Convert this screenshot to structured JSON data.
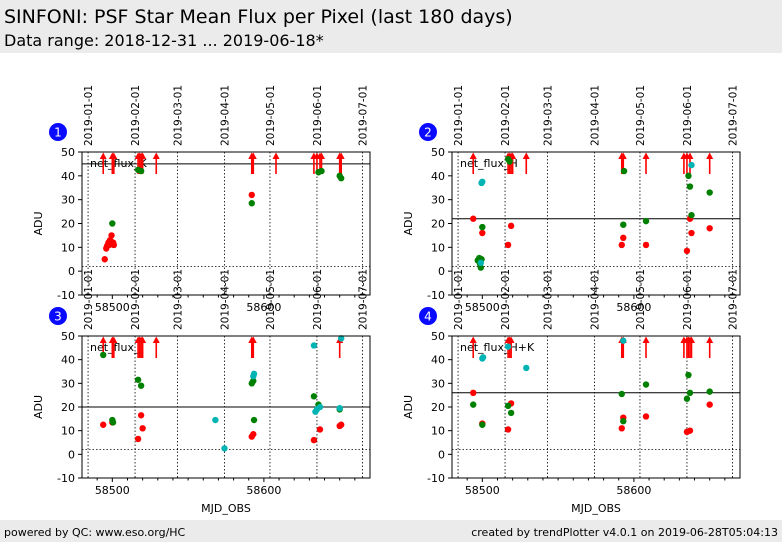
{
  "header": {
    "title": "SINFONI: PSF Star Mean Flux per Pixel (last 180 days)",
    "subtitle": "Data range: 2018-12-31 ... 2019-06-18*"
  },
  "footer": {
    "left": "powered by QC: www.eso.org/HC",
    "right": "created by trendPlotter v4.0.1 on 2019-06-28T05:04:13"
  },
  "colors": {
    "red": "#ff0000",
    "green": "#008000",
    "cyan": "#00b4b4",
    "badge": "#0a0aff",
    "header_bg": "#ebebeb"
  },
  "chart_data": [
    {
      "type": "scatter",
      "panel": "1",
      "label": "net_flux_K",
      "xlabel": "",
      "ylabel": "ADU",
      "xlim": [
        58480,
        58670
      ],
      "ylim": [
        -10,
        50
      ],
      "yticks": [
        -10,
        0,
        10,
        20,
        30,
        40,
        50
      ],
      "xticks": [
        58500,
        58600
      ],
      "reference_line": 45,
      "zero_line": 2,
      "grid": "dotted vertical at month starts",
      "date_ticks": [
        {
          "mjd": 58484,
          "label": "2019-01-01"
        },
        {
          "mjd": 58515,
          "label": "2019-02-01"
        },
        {
          "mjd": 58543,
          "label": "2019-03-01"
        },
        {
          "mjd": 58574,
          "label": "2019-04-01"
        },
        {
          "mjd": 58604,
          "label": "2019-05-01"
        },
        {
          "mjd": 58635,
          "label": "2019-06-01"
        },
        {
          "mjd": 58665,
          "label": "2019-07-01"
        }
      ],
      "series": [
        {
          "color": "red",
          "points": [
            [
              58495,
              5
            ],
            [
              58496,
              9.5
            ],
            [
              58496.5,
              10.5
            ],
            [
              58497,
              11
            ],
            [
              58497.5,
              12
            ],
            [
              58498,
              11
            ],
            [
              58498.5,
              13
            ],
            [
              58499,
              12.5
            ],
            [
              58499.5,
              15
            ],
            [
              58500,
              11.5
            ],
            [
              58500.5,
              12
            ],
            [
              58501,
              11
            ],
            [
              58592,
              32
            ]
          ]
        },
        {
          "color": "green",
          "points": [
            [
              58500,
              20
            ],
            [
              58517,
              42.5
            ],
            [
              58519,
              42
            ],
            [
              58592,
              28.5
            ],
            [
              58636,
              41.5
            ],
            [
              58638,
              42
            ],
            [
              58650,
              40
            ],
            [
              58651,
              39
            ]
          ]
        }
      ],
      "outliers_above": [
        58494,
        58500,
        58501,
        58517,
        58518,
        58519,
        58520,
        58529,
        58592,
        58593,
        58608,
        58633,
        58635,
        58637,
        58638,
        58650,
        58651
      ]
    },
    {
      "type": "scatter",
      "panel": "2",
      "label": "net_flux_H",
      "xlabel": "",
      "ylabel": "ADU",
      "xlim": [
        58480,
        58670
      ],
      "ylim": [
        -10,
        50
      ],
      "yticks": [
        -10,
        0,
        10,
        20,
        30,
        40,
        50
      ],
      "xticks": [
        58500,
        58600
      ],
      "reference_line": 22,
      "zero_line": 2,
      "grid": "dotted vertical at month starts",
      "date_ticks": [
        {
          "mjd": 58484,
          "label": "2019-01-01"
        },
        {
          "mjd": 58515,
          "label": "2019-02-01"
        },
        {
          "mjd": 58543,
          "label": "2019-03-01"
        },
        {
          "mjd": 58574,
          "label": "2019-04-01"
        },
        {
          "mjd": 58604,
          "label": "2019-05-01"
        },
        {
          "mjd": 58635,
          "label": "2019-06-01"
        },
        {
          "mjd": 58665,
          "label": "2019-07-01"
        }
      ],
      "series": [
        {
          "color": "red",
          "points": [
            [
              58494,
              22
            ],
            [
              58500,
              16
            ],
            [
              58517,
              11
            ],
            [
              58519,
              19
            ],
            [
              58592,
              11
            ],
            [
              58593,
              14
            ],
            [
              58608,
              11
            ],
            [
              58635,
              8.5
            ],
            [
              58637,
              22
            ],
            [
              58638,
              16
            ],
            [
              58650,
              18
            ]
          ]
        },
        {
          "color": "green",
          "points": [
            [
              58497,
              4.5
            ],
            [
              58498,
              5.5
            ],
            [
              58498.5,
              3
            ],
            [
              58499,
              1.5
            ],
            [
              58499.5,
              5
            ],
            [
              58500,
              18.5
            ],
            [
              58517,
              47
            ],
            [
              58518,
              46
            ],
            [
              58593,
              19.5
            ],
            [
              58593.5,
              42
            ],
            [
              58608,
              21
            ],
            [
              58636,
              40
            ],
            [
              58637,
              35.5
            ],
            [
              58638,
              23.5
            ],
            [
              58650,
              33
            ]
          ]
        },
        {
          "color": "cyan",
          "points": [
            [
              58499.5,
              37
            ],
            [
              58500,
              37.5
            ],
            [
              58499,
              3.5
            ],
            [
              58638,
              44.5
            ]
          ]
        }
      ],
      "outliers_above": [
        58494,
        58517,
        58518,
        58519,
        58520,
        58529,
        58592,
        58593,
        58608,
        58633,
        58635,
        58637,
        58650
      ]
    },
    {
      "type": "scatter",
      "panel": "3",
      "label": "net_flux_J",
      "xlabel": "MJD_OBS",
      "ylabel": "ADU",
      "xlim": [
        58480,
        58670
      ],
      "ylim": [
        -10,
        50
      ],
      "yticks": [
        -10,
        0,
        10,
        20,
        30,
        40,
        50
      ],
      "xticks": [
        58500,
        58600
      ],
      "reference_line": 20,
      "zero_line": 2,
      "grid": "dotted vertical at month starts",
      "date_ticks": [
        {
          "mjd": 58484,
          "label": "2019-01-01"
        },
        {
          "mjd": 58515,
          "label": "2019-02-01"
        },
        {
          "mjd": 58543,
          "label": "2019-03-01"
        },
        {
          "mjd": 58574,
          "label": "2019-04-01"
        },
        {
          "mjd": 58604,
          "label": "2019-05-01"
        },
        {
          "mjd": 58635,
          "label": "2019-06-01"
        },
        {
          "mjd": 58665,
          "label": "2019-07-01"
        }
      ],
      "series": [
        {
          "color": "red",
          "points": [
            [
              58494,
              12.5
            ],
            [
              58500,
              13.5
            ],
            [
              58517,
              6.5
            ],
            [
              58519,
              16.5
            ],
            [
              58520,
              11
            ],
            [
              58592,
              7.5
            ],
            [
              58593,
              8.5
            ],
            [
              58633,
              6
            ],
            [
              58637,
              10.5
            ],
            [
              58650,
              12
            ],
            [
              58651,
              12.5
            ]
          ]
        },
        {
          "color": "green",
          "points": [
            [
              58494,
              42
            ],
            [
              58500,
              14.5
            ],
            [
              58500.5,
              13.5
            ],
            [
              58517,
              31.5
            ],
            [
              58519,
              29
            ],
            [
              58592,
              30
            ],
            [
              58593,
              31
            ],
            [
              58593.5,
              14.5
            ],
            [
              58633,
              24.5
            ],
            [
              58636,
              21
            ],
            [
              58650,
              19
            ]
          ]
        },
        {
          "color": "cyan",
          "points": [
            [
              58568,
              14.5
            ],
            [
              58574,
              2.5
            ],
            [
              58593,
              33
            ],
            [
              58593.5,
              34
            ],
            [
              58633,
              46
            ],
            [
              58634,
              18
            ],
            [
              58635,
              19
            ],
            [
              58637,
              20
            ],
            [
              58650,
              19.5
            ],
            [
              58651,
              49
            ]
          ]
        }
      ],
      "outliers_above": [
        58494,
        58500,
        58501,
        58517,
        58518,
        58519,
        58520,
        58529,
        58592,
        58593,
        58650
      ]
    },
    {
      "type": "scatter",
      "panel": "4",
      "label": "net_flux_H+K",
      "xlabel": "MJD_OBS",
      "ylabel": "ADU",
      "xlim": [
        58480,
        58670
      ],
      "ylim": [
        -10,
        50
      ],
      "yticks": [
        -10,
        0,
        10,
        20,
        30,
        40,
        50
      ],
      "xticks": [
        58500,
        58600
      ],
      "reference_line": 26,
      "zero_line": 2,
      "grid": "dotted vertical at month starts",
      "date_ticks": [
        {
          "mjd": 58484,
          "label": "2019-01-01"
        },
        {
          "mjd": 58515,
          "label": "2019-02-01"
        },
        {
          "mjd": 58543,
          "label": "2019-03-01"
        },
        {
          "mjd": 58574,
          "label": "2019-04-01"
        },
        {
          "mjd": 58604,
          "label": "2019-05-01"
        },
        {
          "mjd": 58635,
          "label": "2019-06-01"
        },
        {
          "mjd": 58665,
          "label": "2019-07-01"
        }
      ],
      "series": [
        {
          "color": "red",
          "points": [
            [
              58494,
              26
            ],
            [
              58500,
              13
            ],
            [
              58517,
              10.5
            ],
            [
              58519,
              21.5
            ],
            [
              58592,
              11
            ],
            [
              58593,
              15.5
            ],
            [
              58608,
              16
            ],
            [
              58635,
              9.5
            ],
            [
              58637,
              10
            ],
            [
              58650,
              21
            ]
          ]
        },
        {
          "color": "green",
          "points": [
            [
              58494,
              21
            ],
            [
              58500,
              12.5
            ],
            [
              58517,
              20.5
            ],
            [
              58519,
              17.5
            ],
            [
              58592,
              25.5
            ],
            [
              58593,
              14
            ],
            [
              58608,
              29.5
            ],
            [
              58635,
              23.5
            ],
            [
              58636,
              33.5
            ],
            [
              58637,
              26
            ],
            [
              58650,
              26.5
            ]
          ]
        },
        {
          "color": "cyan",
          "points": [
            [
              58500,
              40.5
            ],
            [
              58500.5,
              41
            ],
            [
              58517,
              45.5
            ],
            [
              58529,
              36.5
            ],
            [
              58593,
              48
            ]
          ]
        }
      ],
      "outliers_above": [
        58494,
        58517,
        58518,
        58519,
        58592,
        58593,
        58608,
        58633,
        58635,
        58636,
        58637,
        58638,
        58650
      ]
    }
  ]
}
